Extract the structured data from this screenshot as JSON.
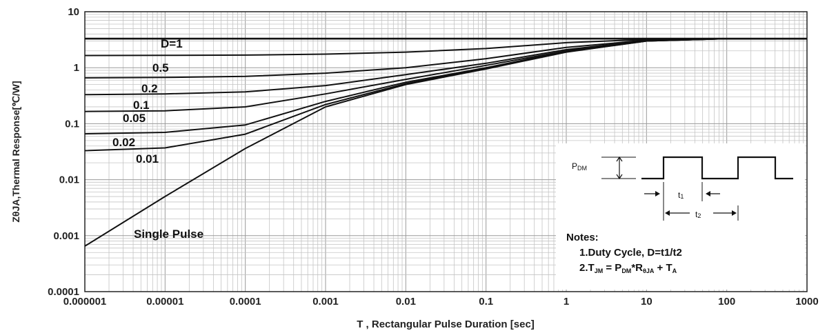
{
  "chart_data": {
    "type": "line",
    "x_scale": "log",
    "y_scale": "log",
    "xlim": [
      1e-06,
      1000
    ],
    "ylim": [
      0.0001,
      10
    ],
    "xlabel": "T , Rectangular Pulse Duration [sec]",
    "ylabel": "ZθJA,Thermal Response[℃/W]",
    "grid": true,
    "x_ticks": [
      "0.000001",
      "0.00001",
      "0.0001",
      "0.001",
      "0.01",
      "0.1",
      "1",
      "10",
      "100",
      "1000"
    ],
    "y_ticks": [
      "0.0001",
      "0.001",
      "0.01",
      "0.1",
      "1",
      "10"
    ],
    "x": [
      1e-06,
      1e-05,
      0.0001,
      0.001,
      0.01,
      0.1,
      1,
      10,
      100,
      1000
    ],
    "series": [
      {
        "name": "D=1",
        "values": [
          3.3,
          3.3,
          3.3,
          3.3,
          3.3,
          3.3,
          3.3,
          3.3,
          3.3,
          3.3
        ]
      },
      {
        "name": "0.5",
        "values": [
          1.65,
          1.66,
          1.68,
          1.75,
          1.9,
          2.2,
          2.8,
          3.2,
          3.3,
          3.3
        ]
      },
      {
        "name": "0.2",
        "values": [
          0.66,
          0.67,
          0.7,
          0.8,
          1.0,
          1.45,
          2.3,
          3.1,
          3.3,
          3.3
        ]
      },
      {
        "name": "0.1",
        "values": [
          0.33,
          0.34,
          0.37,
          0.48,
          0.75,
          1.2,
          2.1,
          3.05,
          3.3,
          3.3
        ]
      },
      {
        "name": "0.05",
        "values": [
          0.165,
          0.17,
          0.2,
          0.34,
          0.62,
          1.1,
          2.0,
          3.05,
          3.3,
          3.3
        ]
      },
      {
        "name": "0.02",
        "values": [
          0.066,
          0.07,
          0.095,
          0.25,
          0.55,
          1.0,
          1.95,
          3.0,
          3.3,
          3.3
        ]
      },
      {
        "name": "0.01",
        "values": [
          0.033,
          0.037,
          0.065,
          0.22,
          0.52,
          0.97,
          1.92,
          3.0,
          3.3,
          3.3
        ]
      },
      {
        "name": "Single Pulse",
        "values": [
          0.00065,
          0.005,
          0.036,
          0.2,
          0.5,
          0.95,
          1.9,
          3.0,
          3.3,
          3.3
        ]
      }
    ],
    "labels": {
      "d1": "D=1",
      "d05": "0.5",
      "d02": "0.2",
      "d01": "0.1",
      "d005": "0.05",
      "d002": "0.02",
      "d001": "0.01",
      "single": "Single Pulse"
    },
    "inset": {
      "pdm_label": "P",
      "pdm_sub": "DM",
      "t1_label": "t",
      "t1_sub": "1",
      "t2_label": "t",
      "t2_sub": "2",
      "notes_title": "Notes:",
      "note1": "1.Duty  Cycle, D=t1/t2",
      "note2_a": "2.T",
      "note2_a_sub": "JM",
      "note2_b": " = P",
      "note2_b_sub": "DM",
      "note2_c": "*R",
      "note2_c_sub": "θJA",
      "note2_d": " + T",
      "note2_d_sub": "A"
    }
  }
}
